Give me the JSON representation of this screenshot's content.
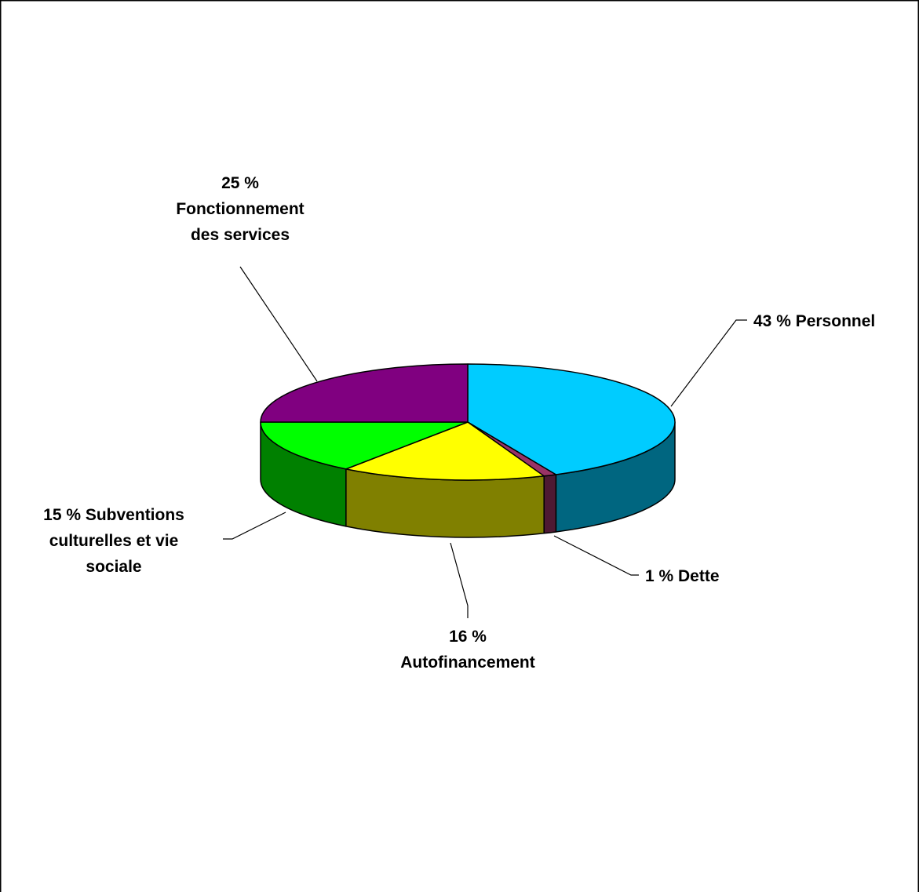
{
  "chart_data": {
    "type": "pie",
    "title": "",
    "three_d": true,
    "legend": "none",
    "slices": [
      {
        "name": "Personnel",
        "value": 43,
        "label_lines": [
          "43 % Personnel"
        ],
        "top_color": "#00CCFF",
        "side_color": "#006680"
      },
      {
        "name": "Dette",
        "value": 1,
        "label_lines": [
          "1 % Dette"
        ],
        "top_color": "#993366",
        "side_color": "#4D1933"
      },
      {
        "name": "Autofinancement",
        "value": 16,
        "label_lines": [
          "16 %",
          "Autofinancement"
        ],
        "top_color": "#FFFF00",
        "side_color": "#808000"
      },
      {
        "name": "Subventions culturelles et vie sociale",
        "value": 15,
        "label_lines": [
          "15 % Subventions",
          "culturelles et vie",
          "sociale"
        ],
        "top_color": "#00FF00",
        "side_color": "#008000"
      },
      {
        "name": "Fonctionnement des services",
        "value": 25,
        "label_lines": [
          "25 %",
          "Fonctionnement",
          "des services"
        ],
        "top_color": "#800080",
        "side_color": "#400040"
      }
    ]
  }
}
